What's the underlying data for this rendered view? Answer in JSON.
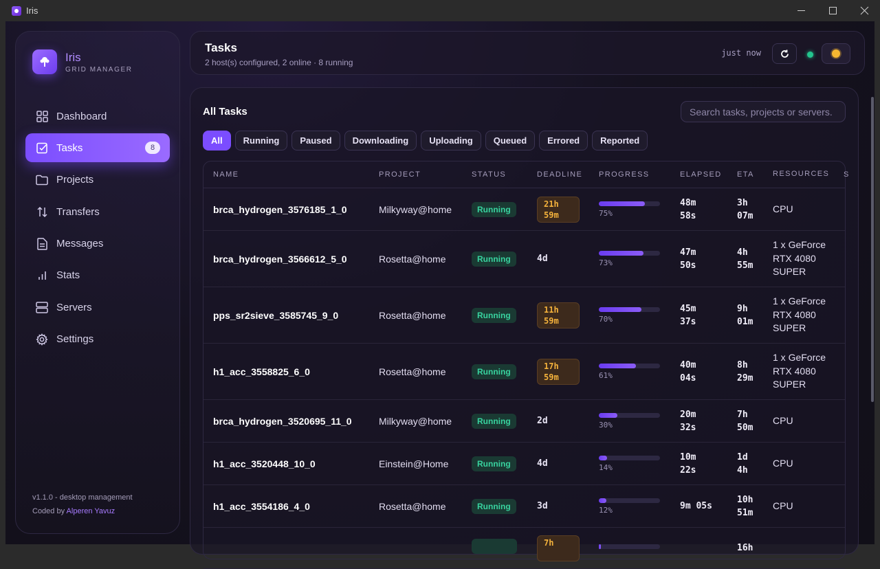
{
  "window": {
    "title": "Iris"
  },
  "brand": {
    "name": "Iris",
    "subtitle": "GRID MANAGER"
  },
  "nav": [
    {
      "label": "Dashboard",
      "icon": "grid-icon"
    },
    {
      "label": "Tasks",
      "icon": "checkbox-icon",
      "badge": "8",
      "active": true
    },
    {
      "label": "Projects",
      "icon": "folder-icon"
    },
    {
      "label": "Transfers",
      "icon": "transfer-icon"
    },
    {
      "label": "Messages",
      "icon": "document-icon"
    },
    {
      "label": "Stats",
      "icon": "bar-chart-icon"
    },
    {
      "label": "Servers",
      "icon": "server-icon"
    },
    {
      "label": "Settings",
      "icon": "gear-icon"
    }
  ],
  "footer": {
    "version": "v1.1.0 - desktop management",
    "coded_by": "Coded by",
    "author": "Alperen Yavuz"
  },
  "header": {
    "title": "Tasks",
    "subtitle": "2 host(s) configured, 2 online · 8 running",
    "updated": "just now"
  },
  "panel": {
    "title": "All Tasks",
    "search_placeholder": "Search tasks, projects or servers."
  },
  "filters": [
    "All",
    "Running",
    "Paused",
    "Downloading",
    "Uploading",
    "Queued",
    "Errored",
    "Reported"
  ],
  "columns": [
    "NAME",
    "PROJECT",
    "STATUS",
    "DEADLINE",
    "PROGRESS",
    "ELAPSED",
    "ETA",
    "RESOURCES",
    "S"
  ],
  "tasks": [
    {
      "name": "brca_hydrogen_3576185_1_0",
      "project": "Milkyway@home",
      "status": "Running",
      "deadline": [
        "21h",
        "59m"
      ],
      "deadline_warn": true,
      "progress": 75,
      "progress_label": "75%",
      "elapsed": [
        "48m",
        "58s"
      ],
      "eta": [
        "3h",
        "07m"
      ],
      "resources": [
        "CPU"
      ]
    },
    {
      "name": "brca_hydrogen_3566612_5_0",
      "project": "Rosetta@home",
      "status": "Running",
      "deadline": [
        "4d"
      ],
      "deadline_warn": false,
      "progress": 73,
      "progress_label": "73%",
      "elapsed": [
        "47m",
        "50s"
      ],
      "eta": [
        "4h",
        "55m"
      ],
      "resources": [
        "1 x GeForce",
        "RTX 4080",
        "SUPER"
      ]
    },
    {
      "name": "pps_sr2sieve_3585745_9_0",
      "project": "Rosetta@home",
      "status": "Running",
      "deadline": [
        "11h",
        "59m"
      ],
      "deadline_warn": true,
      "progress": 70,
      "progress_label": "70%",
      "elapsed": [
        "45m",
        "37s"
      ],
      "eta": [
        "9h",
        "01m"
      ],
      "resources": [
        "1 x GeForce",
        "RTX 4080",
        "SUPER"
      ]
    },
    {
      "name": "h1_acc_3558825_6_0",
      "project": "Rosetta@home",
      "status": "Running",
      "deadline": [
        "17h",
        "59m"
      ],
      "deadline_warn": true,
      "progress": 61,
      "progress_label": "61%",
      "elapsed": [
        "40m",
        "04s"
      ],
      "eta": [
        "8h",
        "29m"
      ],
      "resources": [
        "1 x GeForce",
        "RTX 4080",
        "SUPER"
      ]
    },
    {
      "name": "brca_hydrogen_3520695_11_0",
      "project": "Milkyway@home",
      "status": "Running",
      "deadline": [
        "2d"
      ],
      "deadline_warn": false,
      "progress": 30,
      "progress_label": "30%",
      "elapsed": [
        "20m",
        "32s"
      ],
      "eta": [
        "7h",
        "50m"
      ],
      "resources": [
        "CPU"
      ]
    },
    {
      "name": "h1_acc_3520448_10_0",
      "project": "Einstein@Home",
      "status": "Running",
      "deadline": [
        "4d"
      ],
      "deadline_warn": false,
      "progress": 14,
      "progress_label": "14%",
      "elapsed": [
        "10m",
        "22s"
      ],
      "eta": [
        "1d",
        "4h"
      ],
      "resources": [
        "CPU"
      ]
    },
    {
      "name": "h1_acc_3554186_4_0",
      "project": "Rosetta@home",
      "status": "Running",
      "deadline": [
        "3d"
      ],
      "deadline_warn": false,
      "progress": 12,
      "progress_label": "12%",
      "elapsed": [
        "9m 05s"
      ],
      "eta": [
        "10h",
        "51m"
      ],
      "resources": [
        "CPU"
      ]
    },
    {
      "name": "",
      "project": "",
      "status": "",
      "deadline": [
        "7h",
        ""
      ],
      "deadline_warn": true,
      "progress": 3,
      "progress_label": "",
      "elapsed": [
        ""
      ],
      "eta": [
        "16h",
        ""
      ],
      "resources": [
        ""
      ]
    }
  ]
}
